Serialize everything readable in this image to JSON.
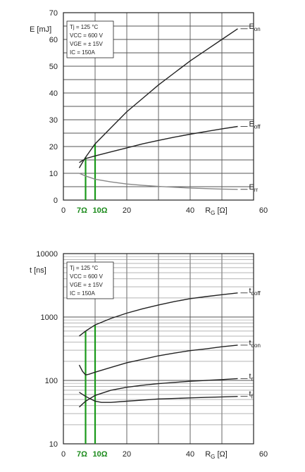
{
  "chart_data": [
    {
      "type": "line",
      "ylabel": "E [mJ]",
      "xlabel": "R",
      "xlabel_sub": "G",
      "xlabel_unit": "[Ω]",
      "xlim": [
        0,
        60
      ],
      "ylim": [
        0,
        70
      ],
      "x_ticks": [
        0,
        20,
        40,
        60
      ],
      "y_ticks": [
        0,
        10,
        20,
        30,
        40,
        50,
        60,
        70
      ],
      "x_tick_labels": [
        "0",
        "20",
        "40",
        "60"
      ],
      "y_tick_labels": [
        "0",
        "10",
        "20",
        "30",
        "40",
        "50",
        "60",
        "70"
      ],
      "conditions": [
        "Tj = 125 °C",
        "VCC = 600 V",
        "VGE = ± 15V",
        "IC = 150A"
      ],
      "markers": [
        {
          "x": 7,
          "label": "7Ω"
        },
        {
          "x": 10,
          "label": "10Ω"
        }
      ],
      "series": [
        {
          "name": "Eon",
          "label_main": "E",
          "label_sub": "on",
          "color": "#222222",
          "x": [
            5,
            7,
            10,
            15,
            20,
            25,
            30,
            35,
            40,
            45,
            50,
            55
          ],
          "y": [
            12,
            16,
            21,
            27,
            33,
            38,
            43,
            47.5,
            52,
            56,
            60,
            64
          ]
        },
        {
          "name": "Eoff",
          "label_main": "E",
          "label_sub": "off",
          "color": "#222222",
          "x": [
            5,
            7,
            10,
            15,
            20,
            25,
            30,
            35,
            40,
            45,
            50,
            55
          ],
          "y": [
            14,
            15.5,
            16.5,
            18,
            19.5,
            21,
            22.3,
            23.5,
            24.6,
            25.6,
            26.6,
            27.5
          ]
        },
        {
          "name": "Err",
          "label_main": "E",
          "label_sub": "rr",
          "color": "#888888",
          "x": [
            5,
            7,
            10,
            15,
            20,
            25,
            30,
            35,
            40,
            45,
            50,
            55
          ],
          "y": [
            10,
            9,
            7.8,
            6.8,
            6,
            5.5,
            5.1,
            4.8,
            4.5,
            4.3,
            4.1,
            4
          ]
        }
      ]
    },
    {
      "type": "line",
      "yscale": "log",
      "ylabel": "t [ns]",
      "xlabel": "R",
      "xlabel_sub": "G",
      "xlabel_unit": "[Ω]",
      "xlim": [
        0,
        60
      ],
      "ylim": [
        10,
        10000
      ],
      "x_ticks": [
        0,
        20,
        40,
        60
      ],
      "y_ticks": [
        10,
        100,
        1000,
        10000
      ],
      "x_tick_labels": [
        "0",
        "20",
        "40",
        "60"
      ],
      "y_tick_labels": [
        "10",
        "100",
        "1000",
        "10000"
      ],
      "conditions": [
        "Tj = 125 °C",
        "VCC = 600 V",
        "VGE = ± 15V",
        "IC = 150A"
      ],
      "markers": [
        {
          "x": 7,
          "label": "7Ω"
        },
        {
          "x": 10,
          "label": "10Ω"
        }
      ],
      "series": [
        {
          "name": "tdoff",
          "label_main": "t",
          "label_sub": "doff",
          "color": "#222222",
          "x": [
            5,
            7,
            10,
            15,
            20,
            25,
            30,
            35,
            40,
            45,
            50,
            55
          ],
          "y": [
            500,
            600,
            750,
            950,
            1150,
            1350,
            1550,
            1750,
            1950,
            2100,
            2250,
            2400
          ]
        },
        {
          "name": "tdon",
          "label_main": "t",
          "label_sub": "don",
          "color": "#222222",
          "x": [
            5,
            6,
            7,
            8,
            10,
            15,
            20,
            25,
            30,
            35,
            40,
            45,
            50,
            55
          ],
          "y": [
            175,
            140,
            122,
            125,
            135,
            160,
            190,
            215,
            245,
            270,
            295,
            315,
            340,
            360
          ]
        },
        {
          "name": "tr",
          "label_main": "t",
          "label_sub": "r",
          "color": "#222222",
          "x": [
            5,
            7,
            10,
            15,
            20,
            25,
            30,
            35,
            40,
            45,
            50,
            55
          ],
          "y": [
            38,
            47,
            58,
            70,
            78,
            84,
            89,
            93,
            97,
            100,
            103,
            107
          ]
        },
        {
          "name": "tf",
          "label_main": "t",
          "label_sub": "f",
          "color": "#222222",
          "x": [
            5,
            7,
            10,
            12,
            15,
            20,
            25,
            30,
            35,
            40,
            45,
            50,
            55
          ],
          "y": [
            65,
            56,
            47,
            45,
            45,
            47,
            49,
            51,
            52,
            53,
            54,
            55,
            56
          ]
        }
      ]
    }
  ]
}
